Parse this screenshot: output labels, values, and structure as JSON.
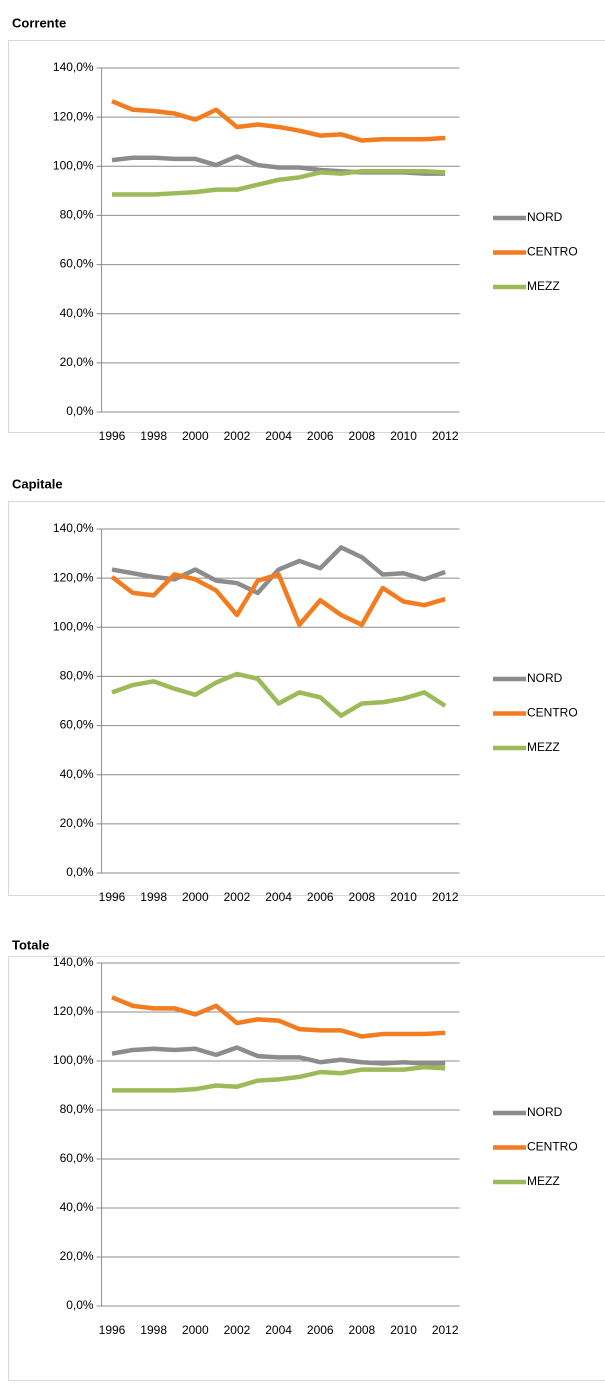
{
  "chart_data": [
    {
      "type": "line",
      "title": "Corrente",
      "x": [
        1996,
        1997,
        1998,
        1999,
        2000,
        2001,
        2002,
        2003,
        2004,
        2005,
        2006,
        2007,
        2008,
        2009,
        2010,
        2011,
        2012
      ],
      "xlim": [
        1995.5,
        2012.5
      ],
      "xticks": [
        1996,
        1998,
        2000,
        2002,
        2004,
        2006,
        2008,
        2010,
        2012
      ],
      "ylim": [
        0,
        140
      ],
      "yticks": [
        {
          "value": 0,
          "label": "0,0%"
        },
        {
          "value": 20,
          "label": "20,0%"
        },
        {
          "value": 40,
          "label": "40,0%"
        },
        {
          "value": 60,
          "label": "60,0%"
        },
        {
          "value": 80,
          "label": "80,0%"
        },
        {
          "value": 100,
          "label": "100,0%"
        },
        {
          "value": 120,
          "label": "120,0%"
        },
        {
          "value": 140,
          "label": "140,0%"
        }
      ],
      "grid": true,
      "legend": "right",
      "series": [
        {
          "name": "NORD",
          "color": "#8c8c8c",
          "values": [
            102.5,
            103.5,
            103.5,
            103,
            103,
            100.5,
            104,
            100.5,
            99.5,
            99.5,
            98.5,
            98,
            97.5,
            97.5,
            97.5,
            97,
            97
          ]
        },
        {
          "name": "CENTRO",
          "color": "#f47c20",
          "values": [
            126.5,
            123,
            122.5,
            121.5,
            119,
            123,
            116,
            117,
            116,
            114.5,
            112.5,
            113,
            110.5,
            111,
            111,
            111,
            111.5
          ]
        },
        {
          "name": "MEZZ",
          "color": "#9bbb59",
          "values": [
            88.5,
            88.5,
            88.5,
            89,
            89.5,
            90.5,
            90.5,
            92.5,
            94.5,
            95.5,
            97.5,
            97,
            98,
            98,
            98,
            98,
            97.5
          ]
        }
      ]
    },
    {
      "type": "line",
      "title": "Capitale",
      "x": [
        1996,
        1997,
        1998,
        1999,
        2000,
        2001,
        2002,
        2003,
        2004,
        2005,
        2006,
        2007,
        2008,
        2009,
        2010,
        2011,
        2012
      ],
      "xlim": [
        1995.5,
        2012.5
      ],
      "xticks": [
        1996,
        1998,
        2000,
        2002,
        2004,
        2006,
        2008,
        2010,
        2012
      ],
      "ylim": [
        0,
        140
      ],
      "yticks": [
        {
          "value": 0,
          "label": "0,0%"
        },
        {
          "value": 20,
          "label": "20,0%"
        },
        {
          "value": 40,
          "label": "40,0%"
        },
        {
          "value": 60,
          "label": "60,0%"
        },
        {
          "value": 80,
          "label": "80,0%"
        },
        {
          "value": 100,
          "label": "100,0%"
        },
        {
          "value": 120,
          "label": "120,0%"
        },
        {
          "value": 140,
          "label": "140,0%"
        }
      ],
      "grid": true,
      "legend": "right",
      "series": [
        {
          "name": "NORD",
          "color": "#8c8c8c",
          "values": [
            123.5,
            122,
            120.5,
            119.5,
            123.5,
            119,
            118,
            114,
            123.5,
            127,
            124,
            132.5,
            128.5,
            121.5,
            122,
            119.5,
            122.5
          ]
        },
        {
          "name": "CENTRO",
          "color": "#f47c20",
          "values": [
            120.5,
            114,
            113,
            121.5,
            119.5,
            115,
            105,
            119,
            121.5,
            101,
            111,
            105,
            101,
            116,
            110.5,
            109,
            111.5
          ]
        },
        {
          "name": "MEZZ",
          "color": "#9bbb59",
          "values": [
            73.5,
            76.5,
            78,
            75,
            72.5,
            77.5,
            81,
            79,
            69,
            73.5,
            71.5,
            64,
            69,
            69.5,
            71,
            73.5,
            68
          ]
        }
      ]
    },
    {
      "type": "line",
      "title": "Totale",
      "x": [
        1996,
        1997,
        1998,
        1999,
        2000,
        2001,
        2002,
        2003,
        2004,
        2005,
        2006,
        2007,
        2008,
        2009,
        2010,
        2011,
        2012
      ],
      "xlim": [
        1995.5,
        2012.5
      ],
      "xticks": [
        1996,
        1998,
        2000,
        2002,
        2004,
        2006,
        2008,
        2010,
        2012
      ],
      "ylim": [
        0,
        140
      ],
      "yticks": [
        {
          "value": 0,
          "label": "0,0%"
        },
        {
          "value": 20,
          "label": "20,0%"
        },
        {
          "value": 40,
          "label": "40,0%"
        },
        {
          "value": 60,
          "label": "60,0%"
        },
        {
          "value": 80,
          "label": "80,0%"
        },
        {
          "value": 100,
          "label": "100,0%"
        },
        {
          "value": 120,
          "label": "120,0%"
        },
        {
          "value": 140,
          "label": "140,0%"
        }
      ],
      "grid": true,
      "legend": "right",
      "series": [
        {
          "name": "NORD",
          "color": "#8c8c8c",
          "values": [
            103,
            104.5,
            105,
            104.5,
            105,
            102.5,
            105.5,
            102,
            101.5,
            101.5,
            99.5,
            100.5,
            99.5,
            99,
            99.5,
            99,
            99
          ]
        },
        {
          "name": "CENTRO",
          "color": "#f47c20",
          "values": [
            126,
            122.5,
            121.5,
            121.5,
            119,
            122.5,
            115.5,
            117,
            116.5,
            113,
            112.5,
            112.5,
            110,
            111,
            111,
            111,
            111.5
          ]
        },
        {
          "name": "MEZZ",
          "color": "#9bbb59",
          "values": [
            88,
            88,
            88,
            88,
            88.5,
            90,
            89.5,
            92,
            92.5,
            93.5,
            95.5,
            95,
            96.5,
            96.5,
            96.5,
            97.5,
            97
          ]
        }
      ]
    }
  ]
}
